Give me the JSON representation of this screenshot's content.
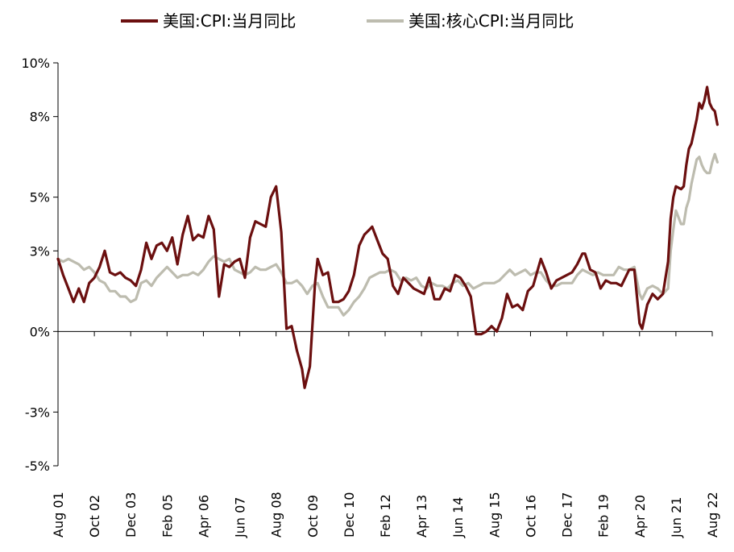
{
  "chart_data": {
    "type": "line",
    "title": "",
    "xlabel": "",
    "ylabel": "",
    "ylim": [
      -5,
      10
    ],
    "y_ticks": [
      10,
      8,
      5,
      3,
      0,
      -3,
      -5
    ],
    "y_tick_labels": [
      "10%",
      "8%",
      "5%",
      "3%",
      "0%",
      "-3%",
      "-5%"
    ],
    "x_tick_labels": [
      "Aug 01",
      "Oct 02",
      "Dec 03",
      "Feb 05",
      "Apr 06",
      "Jun 07",
      "Aug 08",
      "Oct 09",
      "Dec 10",
      "Feb 12",
      "Apr 13",
      "Jun 14",
      "Aug 15",
      "Oct 16",
      "Dec 17",
      "Feb 19",
      "Apr 20",
      "Jun 21",
      "Aug 22"
    ],
    "x_range": [
      "2001-08",
      "2022-08"
    ],
    "grid": false,
    "legend_position": "top",
    "colors": {
      "cpi": "#6b0f0f",
      "core": "#bdbcaf"
    },
    "series": [
      {
        "name": "美国:CPI:当月同比",
        "color": "#6b0f0f",
        "points": [
          [
            "2001-08",
            2.7
          ],
          [
            "2001-10",
            2.1
          ],
          [
            "2001-12",
            1.6
          ],
          [
            "2002-02",
            1.1
          ],
          [
            "2002-04",
            1.6
          ],
          [
            "2002-06",
            1.1
          ],
          [
            "2002-08",
            1.8
          ],
          [
            "2002-10",
            2.0
          ],
          [
            "2002-12",
            2.4
          ],
          [
            "2003-02",
            3.0
          ],
          [
            "2003-04",
            2.2
          ],
          [
            "2003-06",
            2.1
          ],
          [
            "2003-08",
            2.2
          ],
          [
            "2003-10",
            2.0
          ],
          [
            "2003-12",
            1.9
          ],
          [
            "2004-02",
            1.7
          ],
          [
            "2004-04",
            2.3
          ],
          [
            "2004-06",
            3.3
          ],
          [
            "2004-08",
            2.7
          ],
          [
            "2004-10",
            3.2
          ],
          [
            "2004-12",
            3.3
          ],
          [
            "2005-02",
            3.0
          ],
          [
            "2005-04",
            3.5
          ],
          [
            "2005-06",
            2.5
          ],
          [
            "2005-08",
            3.6
          ],
          [
            "2005-10",
            4.3
          ],
          [
            "2005-12",
            3.4
          ],
          [
            "2006-02",
            3.6
          ],
          [
            "2006-04",
            3.5
          ],
          [
            "2006-06",
            4.3
          ],
          [
            "2006-08",
            3.8
          ],
          [
            "2006-10",
            1.3
          ],
          [
            "2006-12",
            2.5
          ],
          [
            "2007-02",
            2.4
          ],
          [
            "2007-04",
            2.6
          ],
          [
            "2007-06",
            2.7
          ],
          [
            "2007-08",
            2.0
          ],
          [
            "2007-10",
            3.5
          ],
          [
            "2007-12",
            4.1
          ],
          [
            "2008-02",
            4.0
          ],
          [
            "2008-04",
            3.9
          ],
          [
            "2008-06",
            5.0
          ],
          [
            "2008-08",
            5.4
          ],
          [
            "2008-10",
            3.7
          ],
          [
            "2008-12",
            0.1
          ],
          [
            "2009-02",
            0.2
          ],
          [
            "2009-04",
            -0.7
          ],
          [
            "2009-06",
            -1.4
          ],
          [
            "2009-07",
            -2.1
          ],
          [
            "2009-09",
            -1.3
          ],
          [
            "2009-11",
            1.8
          ],
          [
            "2009-12",
            2.7
          ],
          [
            "2010-02",
            2.1
          ],
          [
            "2010-04",
            2.2
          ],
          [
            "2010-06",
            1.1
          ],
          [
            "2010-08",
            1.1
          ],
          [
            "2010-10",
            1.2
          ],
          [
            "2010-12",
            1.5
          ],
          [
            "2011-02",
            2.1
          ],
          [
            "2011-04",
            3.2
          ],
          [
            "2011-06",
            3.6
          ],
          [
            "2011-08",
            3.8
          ],
          [
            "2011-09",
            3.9
          ],
          [
            "2011-11",
            3.4
          ],
          [
            "2012-01",
            2.9
          ],
          [
            "2012-03",
            2.7
          ],
          [
            "2012-05",
            1.7
          ],
          [
            "2012-07",
            1.4
          ],
          [
            "2012-09",
            2.0
          ],
          [
            "2012-11",
            1.8
          ],
          [
            "2013-01",
            1.6
          ],
          [
            "2013-03",
            1.5
          ],
          [
            "2013-05",
            1.4
          ],
          [
            "2013-07",
            2.0
          ],
          [
            "2013-09",
            1.2
          ],
          [
            "2013-11",
            1.2
          ],
          [
            "2014-01",
            1.6
          ],
          [
            "2014-03",
            1.5
          ],
          [
            "2014-05",
            2.1
          ],
          [
            "2014-07",
            2.0
          ],
          [
            "2014-09",
            1.7
          ],
          [
            "2014-11",
            1.3
          ],
          [
            "2015-01",
            -0.1
          ],
          [
            "2015-03",
            -0.1
          ],
          [
            "2015-05",
            0.0
          ],
          [
            "2015-07",
            0.2
          ],
          [
            "2015-09",
            0.0
          ],
          [
            "2015-11",
            0.5
          ],
          [
            "2016-01",
            1.4
          ],
          [
            "2016-03",
            0.9
          ],
          [
            "2016-05",
            1.0
          ],
          [
            "2016-07",
            0.8
          ],
          [
            "2016-09",
            1.5
          ],
          [
            "2016-11",
            1.7
          ],
          [
            "2017-02",
            2.7
          ],
          [
            "2017-04",
            2.2
          ],
          [
            "2017-06",
            1.6
          ],
          [
            "2017-08",
            1.9
          ],
          [
            "2017-10",
            2.0
          ],
          [
            "2017-12",
            2.1
          ],
          [
            "2018-02",
            2.2
          ],
          [
            "2018-04",
            2.5
          ],
          [
            "2018-06",
            2.9
          ],
          [
            "2018-07",
            2.9
          ],
          [
            "2018-09",
            2.3
          ],
          [
            "2018-11",
            2.2
          ],
          [
            "2019-01",
            1.6
          ],
          [
            "2019-03",
            1.9
          ],
          [
            "2019-05",
            1.8
          ],
          [
            "2019-07",
            1.8
          ],
          [
            "2019-09",
            1.7
          ],
          [
            "2019-12",
            2.3
          ],
          [
            "2020-02",
            2.3
          ],
          [
            "2020-04",
            0.3
          ],
          [
            "2020-05",
            0.1
          ],
          [
            "2020-07",
            1.0
          ],
          [
            "2020-09",
            1.4
          ],
          [
            "2020-11",
            1.2
          ],
          [
            "2021-01",
            1.4
          ],
          [
            "2021-03",
            2.6
          ],
          [
            "2021-04",
            4.2
          ],
          [
            "2021-05",
            5.0
          ],
          [
            "2021-06",
            5.4
          ],
          [
            "2021-08",
            5.3
          ],
          [
            "2021-09",
            5.4
          ],
          [
            "2021-10",
            6.2
          ],
          [
            "2021-11",
            6.8
          ],
          [
            "2021-12",
            7.0
          ],
          [
            "2022-02",
            7.9
          ],
          [
            "2022-03",
            8.5
          ],
          [
            "2022-04",
            8.3
          ],
          [
            "2022-05",
            8.6
          ],
          [
            "2022-06",
            9.1
          ],
          [
            "2022-07",
            8.5
          ],
          [
            "2022-08",
            8.3
          ],
          [
            "2022-09",
            8.2
          ],
          [
            "2022-10",
            7.7
          ]
        ]
      },
      {
        "name": "美国:核心CPI:当月同比",
        "color": "#bdbcaf",
        "points": [
          [
            "2001-08",
            2.7
          ],
          [
            "2001-10",
            2.6
          ],
          [
            "2001-12",
            2.7
          ],
          [
            "2002-02",
            2.6
          ],
          [
            "2002-04",
            2.5
          ],
          [
            "2002-06",
            2.3
          ],
          [
            "2002-08",
            2.4
          ],
          [
            "2002-10",
            2.2
          ],
          [
            "2002-12",
            1.9
          ],
          [
            "2003-02",
            1.8
          ],
          [
            "2003-04",
            1.5
          ],
          [
            "2003-06",
            1.5
          ],
          [
            "2003-08",
            1.3
          ],
          [
            "2003-10",
            1.3
          ],
          [
            "2003-12",
            1.1
          ],
          [
            "2004-02",
            1.2
          ],
          [
            "2004-04",
            1.8
          ],
          [
            "2004-06",
            1.9
          ],
          [
            "2004-08",
            1.7
          ],
          [
            "2004-10",
            2.0
          ],
          [
            "2004-12",
            2.2
          ],
          [
            "2005-02",
            2.4
          ],
          [
            "2005-04",
            2.2
          ],
          [
            "2005-06",
            2.0
          ],
          [
            "2005-08",
            2.1
          ],
          [
            "2005-10",
            2.1
          ],
          [
            "2005-12",
            2.2
          ],
          [
            "2006-02",
            2.1
          ],
          [
            "2006-04",
            2.3
          ],
          [
            "2006-06",
            2.6
          ],
          [
            "2006-08",
            2.8
          ],
          [
            "2006-10",
            2.7
          ],
          [
            "2006-12",
            2.6
          ],
          [
            "2007-02",
            2.7
          ],
          [
            "2007-04",
            2.3
          ],
          [
            "2007-06",
            2.2
          ],
          [
            "2007-08",
            2.1
          ],
          [
            "2007-10",
            2.2
          ],
          [
            "2007-12",
            2.4
          ],
          [
            "2008-02",
            2.3
          ],
          [
            "2008-04",
            2.3
          ],
          [
            "2008-06",
            2.4
          ],
          [
            "2008-08",
            2.5
          ],
          [
            "2008-10",
            2.2
          ],
          [
            "2008-12",
            1.8
          ],
          [
            "2009-02",
            1.8
          ],
          [
            "2009-04",
            1.9
          ],
          [
            "2009-06",
            1.7
          ],
          [
            "2009-08",
            1.4
          ],
          [
            "2009-10",
            1.7
          ],
          [
            "2009-12",
            1.8
          ],
          [
            "2010-02",
            1.3
          ],
          [
            "2010-04",
            0.9
          ],
          [
            "2010-06",
            0.9
          ],
          [
            "2010-08",
            0.9
          ],
          [
            "2010-10",
            0.6
          ],
          [
            "2010-12",
            0.8
          ],
          [
            "2011-02",
            1.1
          ],
          [
            "2011-04",
            1.3
          ],
          [
            "2011-06",
            1.6
          ],
          [
            "2011-08",
            2.0
          ],
          [
            "2011-10",
            2.1
          ],
          [
            "2011-12",
            2.2
          ],
          [
            "2012-02",
            2.2
          ],
          [
            "2012-04",
            2.3
          ],
          [
            "2012-06",
            2.2
          ],
          [
            "2012-08",
            1.9
          ],
          [
            "2012-10",
            2.0
          ],
          [
            "2012-12",
            1.9
          ],
          [
            "2013-02",
            2.0
          ],
          [
            "2013-04",
            1.7
          ],
          [
            "2013-06",
            1.6
          ],
          [
            "2013-08",
            1.8
          ],
          [
            "2013-10",
            1.7
          ],
          [
            "2013-12",
            1.7
          ],
          [
            "2014-02",
            1.6
          ],
          [
            "2014-04",
            1.8
          ],
          [
            "2014-06",
            1.9
          ],
          [
            "2014-08",
            1.7
          ],
          [
            "2014-10",
            1.8
          ],
          [
            "2014-12",
            1.6
          ],
          [
            "2015-02",
            1.7
          ],
          [
            "2015-04",
            1.8
          ],
          [
            "2015-06",
            1.8
          ],
          [
            "2015-08",
            1.8
          ],
          [
            "2015-10",
            1.9
          ],
          [
            "2015-12",
            2.1
          ],
          [
            "2016-02",
            2.3
          ],
          [
            "2016-04",
            2.1
          ],
          [
            "2016-06",
            2.2
          ],
          [
            "2016-08",
            2.3
          ],
          [
            "2016-10",
            2.1
          ],
          [
            "2016-12",
            2.2
          ],
          [
            "2017-02",
            2.2
          ],
          [
            "2017-04",
            1.9
          ],
          [
            "2017-06",
            1.7
          ],
          [
            "2017-08",
            1.7
          ],
          [
            "2017-10",
            1.8
          ],
          [
            "2017-12",
            1.8
          ],
          [
            "2018-02",
            1.8
          ],
          [
            "2018-04",
            2.1
          ],
          [
            "2018-06",
            2.3
          ],
          [
            "2018-08",
            2.2
          ],
          [
            "2018-10",
            2.1
          ],
          [
            "2018-12",
            2.2
          ],
          [
            "2019-02",
            2.1
          ],
          [
            "2019-04",
            2.1
          ],
          [
            "2019-06",
            2.1
          ],
          [
            "2019-08",
            2.4
          ],
          [
            "2019-10",
            2.3
          ],
          [
            "2019-12",
            2.3
          ],
          [
            "2020-02",
            2.4
          ],
          [
            "2020-04",
            1.4
          ],
          [
            "2020-05",
            1.2
          ],
          [
            "2020-07",
            1.6
          ],
          [
            "2020-09",
            1.7
          ],
          [
            "2020-11",
            1.6
          ],
          [
            "2021-01",
            1.4
          ],
          [
            "2021-03",
            1.6
          ],
          [
            "2021-04",
            3.0
          ],
          [
            "2021-05",
            3.8
          ],
          [
            "2021-06",
            4.5
          ],
          [
            "2021-08",
            4.0
          ],
          [
            "2021-09",
            4.0
          ],
          [
            "2021-10",
            4.6
          ],
          [
            "2021-11",
            4.9
          ],
          [
            "2021-12",
            5.5
          ],
          [
            "2022-02",
            6.4
          ],
          [
            "2022-03",
            6.5
          ],
          [
            "2022-04",
            6.2
          ],
          [
            "2022-05",
            6.0
          ],
          [
            "2022-06",
            5.9
          ],
          [
            "2022-07",
            5.9
          ],
          [
            "2022-08",
            6.3
          ],
          [
            "2022-09",
            6.6
          ],
          [
            "2022-10",
            6.3
          ]
        ]
      }
    ]
  }
}
